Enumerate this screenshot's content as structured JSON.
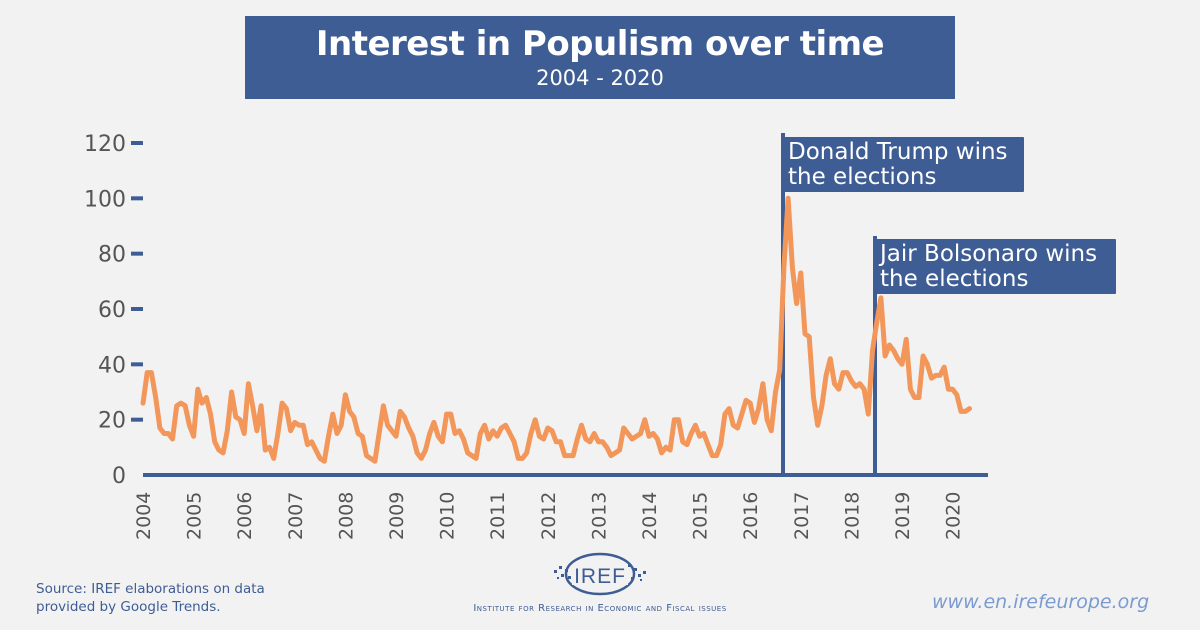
{
  "title": {
    "main": "Interest in Populism over time",
    "subtitle": "2004 - 2020"
  },
  "chart_data": {
    "type": "line",
    "title": "Interest in Populism over time",
    "subtitle": "2004 - 2020",
    "xlabel": "",
    "ylabel": "",
    "ylim": [
      0,
      120
    ],
    "yticks": [
      0,
      20,
      40,
      60,
      80,
      100,
      120
    ],
    "ytick_labels": [
      "0",
      "20",
      "40",
      "60",
      "80",
      "100",
      "120"
    ],
    "xtick_labels": [
      "2004",
      "2005",
      "2006",
      "2007",
      "2008",
      "2009",
      "2010",
      "2011",
      "2012",
      "2013",
      "2014",
      "2015",
      "2016",
      "2017",
      "2018",
      "2019",
      "2020"
    ],
    "x_start": "2004-01",
    "x_step": "month",
    "grid": false,
    "legend": "none",
    "series": [
      {
        "name": "Interest in Populism (Google Trends)",
        "color": "#f2965a",
        "values": [
          26,
          37,
          37,
          28,
          17,
          15,
          15,
          13,
          25,
          26,
          25,
          18,
          14,
          31,
          26,
          28,
          22,
          12,
          9,
          8,
          16,
          30,
          21,
          20,
          15,
          33,
          25,
          16,
          25,
          9,
          10,
          6,
          15,
          26,
          24,
          16,
          19,
          18,
          18,
          11,
          12,
          9,
          6,
          5,
          14,
          22,
          15,
          18,
          29,
          23,
          21,
          15,
          14,
          7,
          6,
          5,
          15,
          25,
          18,
          16,
          14,
          23,
          21,
          17,
          14,
          8,
          6,
          9,
          15,
          19,
          14,
          12,
          22,
          22,
          15,
          16,
          13,
          8,
          7,
          6,
          15,
          18,
          13,
          16,
          14,
          17,
          18,
          15,
          12,
          6,
          6,
          8,
          15,
          20,
          14,
          13,
          17,
          16,
          12,
          12,
          7,
          7,
          7,
          13,
          18,
          13,
          12,
          15,
          12,
          12,
          10,
          7,
          8,
          9,
          17,
          15,
          13,
          14,
          15,
          20,
          14,
          15,
          13,
          8,
          10,
          9,
          20,
          20,
          12,
          11,
          15,
          18,
          14,
          15,
          11,
          7,
          7,
          11,
          22,
          24,
          18,
          17,
          22,
          27,
          26,
          19,
          24,
          33,
          20,
          16,
          30,
          38,
          75,
          100,
          75,
          62,
          73,
          51,
          50,
          28,
          18,
          25,
          36,
          42,
          33,
          31,
          37,
          37,
          34,
          32,
          33,
          31,
          22,
          45,
          55,
          64,
          43,
          47,
          45,
          42,
          40,
          49,
          31,
          28,
          28,
          43,
          40,
          35,
          36,
          36,
          39,
          31,
          31,
          29,
          23,
          23,
          24
        ]
      }
    ],
    "annotations": [
      {
        "label_line1": "Donald Trump wins",
        "label_line2": "the elections",
        "x": "2016-11"
      },
      {
        "label_line1": "Jair Bolsonaro wins",
        "label_line2": "the elections",
        "x": "2018-10"
      }
    ]
  },
  "annotations": {
    "trump": {
      "line1": "Donald Trump wins",
      "line2": "the elections"
    },
    "bolsonaro": {
      "line1": "Jair Bolsonaro wins",
      "line2": "the elections"
    }
  },
  "footer": {
    "source_line1": "Source: IREF elaborations on data",
    "source_line2": "provided by Google Trends.",
    "logo_text": "IREF",
    "institute": "Institute for Research in Economic and Fiscal issues",
    "website": "www.en.irefeurope.org"
  },
  "colors": {
    "brand": "#3e5d94",
    "line": "#f2965a",
    "background": "#f2f2f2",
    "website": "#7b9bd0"
  }
}
